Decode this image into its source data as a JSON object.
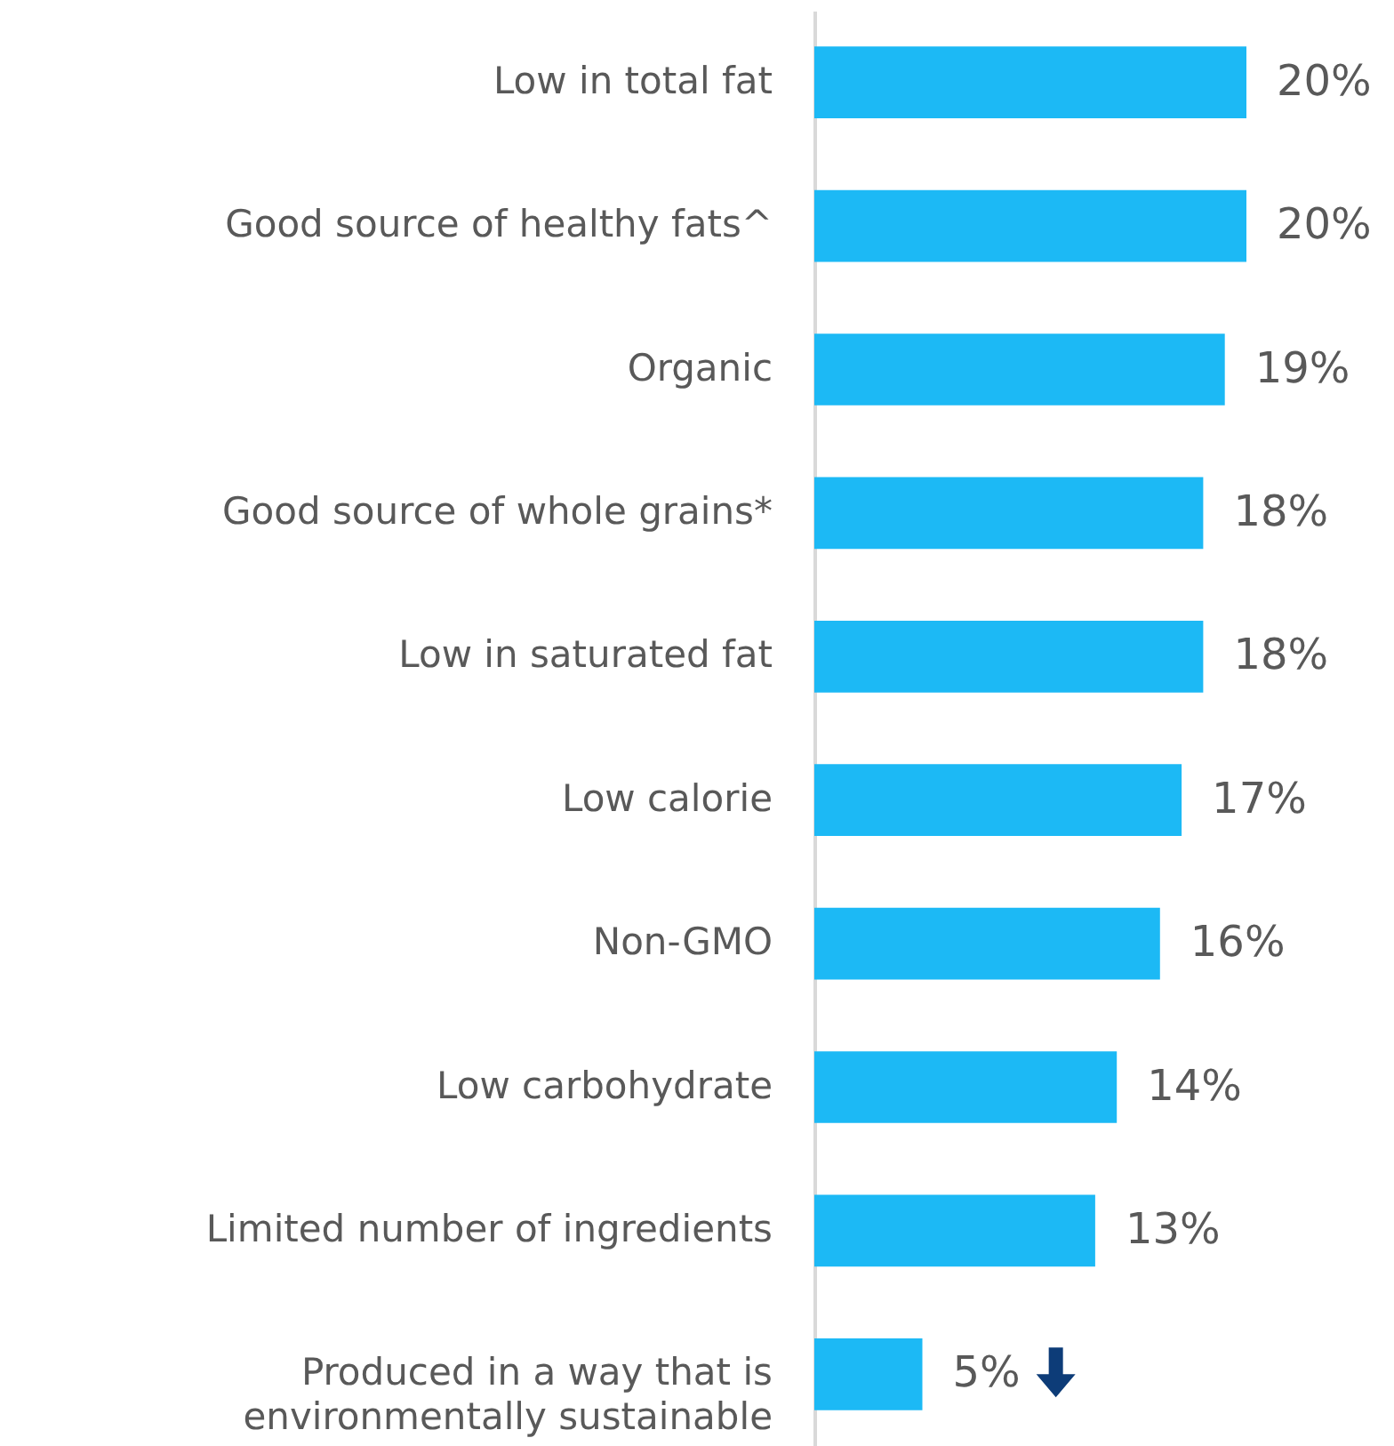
{
  "chart_data": {
    "type": "bar",
    "orientation": "horizontal",
    "categories": [
      "Low in total fat",
      "Good source of healthy fats^",
      "Organic",
      "Good source of whole grains*",
      "Low in saturated fat",
      "Low calorie",
      "Non-GMO",
      "Low carbohydrate",
      "Limited number of ingredients",
      "Produced in a way that is environmentally sustainable"
    ],
    "values": [
      20,
      20,
      19,
      18,
      18,
      17,
      16,
      14,
      13,
      5
    ],
    "color": "#1cb9f5",
    "value_labels": [
      "20%",
      "20%",
      "19%",
      "18%",
      "18%",
      "17%",
      "16%",
      "14%",
      "13%",
      "5%"
    ],
    "tick_labels": "y"
  }
}
